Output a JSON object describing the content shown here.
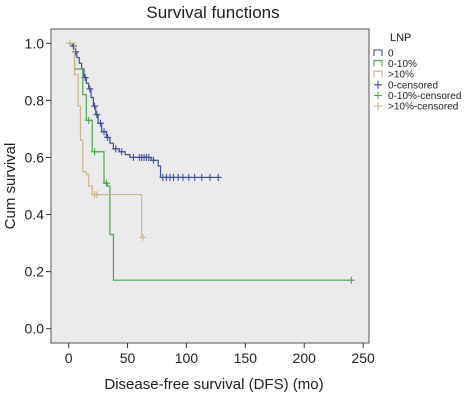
{
  "chart_data": {
    "type": "line",
    "subtype": "kaplan-meier survival step",
    "title": "Survival functions",
    "xlabel": "Disease-free survival (DFS) (mo)",
    "ylabel": "Cum survival",
    "xlim": [
      -15,
      255
    ],
    "ylim": [
      -0.05,
      1.05
    ],
    "xticks": [
      0,
      50,
      100,
      150,
      200,
      250
    ],
    "yticks": [
      0.0,
      0.2,
      0.4,
      0.6,
      0.8,
      1.0
    ],
    "xtick_labels": [
      "0",
      "50",
      "100",
      "150",
      "200",
      "250"
    ],
    "ytick_labels": [
      "0.0",
      "0.2",
      "0.4",
      "0.6",
      "0.8",
      "1.0"
    ],
    "grid": false,
    "plot_background": "#ebebeb",
    "legend": {
      "title": "LNP",
      "position": "right",
      "entries": [
        "0",
        "0-10%",
        ">10%",
        "0-censored",
        "0-10%-censored",
        ">10%-censored"
      ]
    },
    "series": [
      {
        "name": "0",
        "color": "#3b4f9c",
        "steps": [
          [
            0,
            1.0
          ],
          [
            3,
            0.99
          ],
          [
            5,
            0.97
          ],
          [
            7,
            0.95
          ],
          [
            9,
            0.93
          ],
          [
            11,
            0.91
          ],
          [
            13,
            0.88
          ],
          [
            15,
            0.86
          ],
          [
            17,
            0.84
          ],
          [
            19,
            0.81
          ],
          [
            21,
            0.78
          ],
          [
            23,
            0.75
          ],
          [
            25,
            0.72
          ],
          [
            28,
            0.69
          ],
          [
            32,
            0.67
          ],
          [
            35,
            0.65
          ],
          [
            38,
            0.63
          ],
          [
            43,
            0.62
          ],
          [
            48,
            0.61
          ],
          [
            52,
            0.6
          ],
          [
            70,
            0.59
          ],
          [
            76,
            0.57
          ],
          [
            78,
            0.53
          ],
          [
            128,
            0.53
          ]
        ],
        "censored": [
          [
            4,
            0.99
          ],
          [
            6,
            0.97
          ],
          [
            14,
            0.88
          ],
          [
            18,
            0.84
          ],
          [
            22,
            0.78
          ],
          [
            24,
            0.75
          ],
          [
            27,
            0.72
          ],
          [
            30,
            0.69
          ],
          [
            33,
            0.67
          ],
          [
            40,
            0.63
          ],
          [
            45,
            0.62
          ],
          [
            55,
            0.6
          ],
          [
            60,
            0.6
          ],
          [
            62,
            0.6
          ],
          [
            64,
            0.6
          ],
          [
            66,
            0.6
          ],
          [
            68,
            0.6
          ],
          [
            72,
            0.59
          ],
          [
            80,
            0.53
          ],
          [
            83,
            0.53
          ],
          [
            86,
            0.53
          ],
          [
            89,
            0.53
          ],
          [
            93,
            0.53
          ],
          [
            97,
            0.53
          ],
          [
            102,
            0.53
          ],
          [
            107,
            0.53
          ],
          [
            113,
            0.53
          ],
          [
            120,
            0.53
          ],
          [
            127,
            0.53
          ]
        ]
      },
      {
        "name": "0-10%",
        "color": "#4aa84a",
        "steps": [
          [
            0,
            1.0
          ],
          [
            5,
            0.91
          ],
          [
            12,
            0.82
          ],
          [
            15,
            0.73
          ],
          [
            20,
            0.62
          ],
          [
            30,
            0.51
          ],
          [
            33,
            0.5
          ],
          [
            35,
            0.33
          ],
          [
            38,
            0.17
          ],
          [
            240,
            0.17
          ]
        ],
        "censored": [
          [
            17,
            0.73
          ],
          [
            22,
            0.62
          ],
          [
            32,
            0.51
          ],
          [
            240,
            0.17
          ]
        ]
      },
      {
        "name": ">10%",
        "color": "#c9b58a",
        "steps": [
          [
            0,
            1.0
          ],
          [
            5,
            0.89
          ],
          [
            8,
            0.78
          ],
          [
            10,
            0.66
          ],
          [
            12,
            0.55
          ],
          [
            15,
            0.54
          ],
          [
            17,
            0.5
          ],
          [
            20,
            0.47
          ],
          [
            62,
            0.32
          ],
          [
            63,
            0.32
          ]
        ],
        "censored": [
          [
            1,
            1.0
          ],
          [
            22,
            0.47
          ],
          [
            24,
            0.47
          ],
          [
            63,
            0.32
          ]
        ]
      }
    ]
  }
}
